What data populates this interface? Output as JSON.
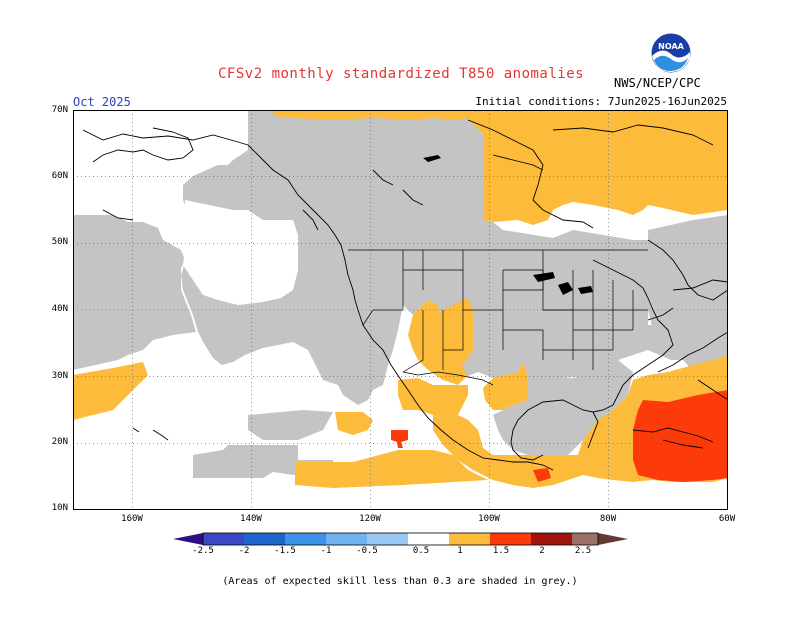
{
  "title": "CFSv2 monthly standardized T850 anomalies",
  "month": "Oct 2025",
  "initial_conditions": "Initial conditions: 7Jun2025-16Jun2025",
  "agency": "NWS/NCEP/CPC",
  "logo_text": "NOAA",
  "footnote": "(Areas of expected skill less than 0.3 are shaded in grey.)",
  "lat_labels": [
    "70N",
    "60N",
    "50N",
    "40N",
    "30N",
    "20N",
    "10N"
  ],
  "lon_labels": [
    "160W",
    "140W",
    "120W",
    "100W",
    "80W",
    "60W"
  ],
  "colorbar_labels": [
    "-2.5",
    "-2",
    "-1.5",
    "-1",
    "-0.5",
    "0.5",
    "1",
    "1.5",
    "2",
    "2.5"
  ],
  "colors": {
    "low_skill_grey": "#c4c4c4",
    "anom_0_5_to_1": "#fdbb3b",
    "anom_1_to_1_5": "#fd3a0a",
    "anom_1_5_to_2": "#a0140e",
    "anom_2_to_2_5": "#9b7165",
    "anom_gt_2_5": "#603a33",
    "neg_lt_-2_5": "#2d0f85",
    "neg_-2_5_to_-2": "#3a48c4",
    "neg_-2_to_-1_5": "#1f66cc",
    "neg_-1_5_to_-1": "#3c94e8",
    "neg_-1_to_-0_5": "#98c9f5",
    "title_red": "#e8332f",
    "month_blue": "#2a3fc4"
  }
}
